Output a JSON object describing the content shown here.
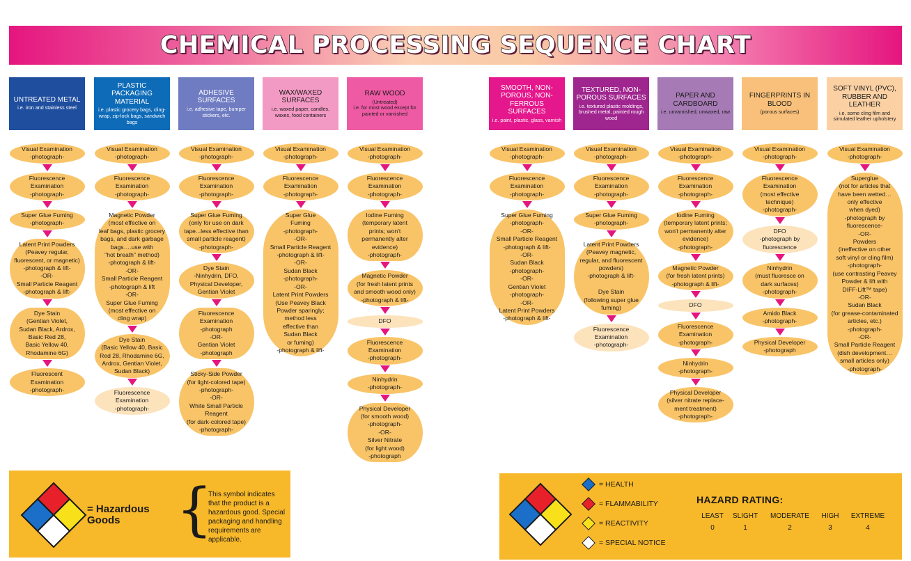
{
  "title": "CHEMICAL PROCESSING SEQUENCE CHART",
  "colors": {
    "arrow": "#e5157f",
    "step": "#f9c468",
    "step_pale": "#fce3bc",
    "footer": "#f7b82a"
  },
  "columns": [
    {
      "title": "UNTREATED METAL",
      "subtitle": "i.e. iron and stainless steel",
      "color": "#1f4e9e",
      "text": "dark",
      "steps": [
        {
          "text": "Visual Examination\n-photograph-"
        },
        {
          "text": "Fluorescence\nExamination\n-photograph-"
        },
        {
          "text": "Super Glue Fuming\n-photograph-"
        },
        {
          "text": "Latent Print Powders\n(Peavey regular,\nfluorescent, or magnetic)\n-photograph & lift-\n-OR-\nSmall Particle Reagent\n-photograph & lift-"
        },
        {
          "text": "Dye Stain\n(Gentian Violet,\nSudan Black, Ardrox,\nBasic Red 28,\nBasic Yellow 40,\nRhodamine 6G)"
        },
        {
          "text": "Fluorescent\nExamination\n-photograph-"
        }
      ]
    },
    {
      "title": "PLASTIC PACKAGING MATERIAL",
      "subtitle": "i.e. plastic grocery bags, cling-wrap, zip-lock bags, sandwich bags",
      "color": "#0e6bb8",
      "text": "dark",
      "steps": [
        {
          "text": "Visual Examination\n-photograph-"
        },
        {
          "text": "Fluorescence\nExamination\n-photograph-"
        },
        {
          "text": "Magnetic Powder\n(most effective on\nleaf bags, plastic grocery\nbags, and dark garbage\nbags….use with\n\"hot breath\" method)\n-photograph & lift-\n-OR-\nSmall Particle Reagent\n-photograph & lift\n-OR-\nSuper Glue Fuming\n(most effective on\ncling wrap)"
        },
        {
          "text": "Dye Stain\n(Basic Yellow 40, Basic\nRed 28, Rhodamine 6G,\nArdrox, Gentian Violet,\nSudan Black)"
        },
        {
          "text": "Fluorescence\nExamination\n-photograph-",
          "pale": true
        }
      ]
    },
    {
      "title": "ADHESIVE SURFACES",
      "subtitle": "i.e. adhesive tape, bumper stickers, etc.",
      "color": "#6f7cc2",
      "text": "dark",
      "steps": [
        {
          "text": "Visual Examination\n-photograph-"
        },
        {
          "text": "Fluorescence\nExamination\n-photograph-"
        },
        {
          "text": "Super Glue Fuming\n(only for use on dark\ntape...less effective than\nsmall particle reagent)\n-photograph-"
        },
        {
          "text": "Dye Stain\n-Ninhydrin, DFO,\nPhysical Developer,\nGentian Violet"
        },
        {
          "text": "Fluorescence\nExamination\n-photograph\n-OR-\nGentian Violet\n-photograph"
        },
        {
          "text": "Sticky-Side Powder\n(for light-colored tape)\n-photograph-\n-OR-\nWhite Small Particle\nReagent\n(for dark-colored tape)\n-photograph-"
        }
      ]
    },
    {
      "title": "WAX/WAXED SURFACES",
      "subtitle": "i.e. waxed paper, candles, waxes, food containers",
      "color": "#f39ac4",
      "text": "light",
      "steps": [
        {
          "text": "Visual Examination\n-photograph-"
        },
        {
          "text": "Fluorescence\nExamination\n-photograph-"
        },
        {
          "text": "Super Glue\nFuming\n-photograph-\n-OR-\nSmall Particle Reagent\n-photograph & lift-\n-OR-\nSudan Black\n-photograph-\n-OR-\nLatent Print Powders\n(Use Peavey Black\nPowder sparingly;\nmethod less\neffective than\nSudan Black\nor fuming)\n-photograph & lift-"
        }
      ]
    },
    {
      "title": "RAW WOOD",
      "subtitle": "(Untreated)\ni.e. for most wood except for painted or varnished",
      "color": "#ef5aa5",
      "text": "light",
      "steps": [
        {
          "text": "Visual Examination\n-photograph-"
        },
        {
          "text": "Fluorescence\nExamination\n-photograph-"
        },
        {
          "text": "Iodine Fuming\n(temporary latent\nprints; won't\npermanently alter\nevidence)\n-photograph-"
        },
        {
          "text": "Magnetic Powder\n(for fresh latent prints\nand smooth wood only)\n-photograph & lift-"
        },
        {
          "text": "DFO",
          "pale": true
        },
        {
          "text": "Fluorescence\nExamination\n-photograph-"
        },
        {
          "text": "Ninhydrin\n-photograph-"
        },
        {
          "text": "Physical Developer\n(for smooth wood)\n-photograph-\n-OR-\nSilver Nitrate\n(for light wood)\n-photograph"
        }
      ]
    },
    {
      "title": "SMOOTH, NON-POROUS, NON-FERROUS SURFACES",
      "subtitle": "i.e. paint, plastic, glass, varnish",
      "color": "#e5178c",
      "text": "dark",
      "steps": [
        {
          "text": "Visual Examination\n-photograph-"
        },
        {
          "text": "Fluorescence\nExamination\n-photograph-"
        },
        {
          "text": "Super Glue Fuming\n-photograph-\n-OR-\nSmall Particle Reagent\n-photograph & lift-\n-OR-\nSudan Black\n-photograph-\n-OR-\nGentian Violet\n-photograph-\n-OR-\nLatent Print Powders\n-photograph & lift-"
        }
      ]
    },
    {
      "title": "TEXTURED, NON-POROUS SURFACES",
      "subtitle": "i.e. textured plastic moldings, brushed metal, painted rough wood",
      "color": "#a0268f",
      "text": "dark",
      "steps": [
        {
          "text": "Visual Examination\n-photograph-"
        },
        {
          "text": "Fluorescence\nExamination\n-photograph-"
        },
        {
          "text": "Super Glue Fuming\n-photograph-"
        },
        {
          "text": "Latent Print Powders\n(Peavey magnetic,\nregular, and fluorescent\npowders)\n-photograph & lift-\n\nDye Stain\n(following super glue\nfuming)"
        },
        {
          "text": "Fluorescence\nExamination\n-photograph-",
          "pale": true
        }
      ]
    },
    {
      "title": "PAPER AND CARDBOARD",
      "subtitle": "i.e. unvarnished, unwaxed, raw",
      "color": "#a67ab5",
      "text": "light",
      "steps": [
        {
          "text": "Visual Examination\n-photograph-"
        },
        {
          "text": "Fluorescence\nExamination\n-photograph-"
        },
        {
          "text": "Iodine Fuming\n(temporary latent prints;\nwon't permanently alter\nevidence)\n-photograph-"
        },
        {
          "text": "Magnetic Powder\n(for fresh latent prints)\n-photograph & lift-"
        },
        {
          "text": "DFO",
          "pale": true
        },
        {
          "text": "Fluorescence\nExamination\n-photograph-"
        },
        {
          "text": "Ninhydrin\n-photograph-"
        },
        {
          "text": "Physical Developer\n(silver nitrate replace-\nment treatment)\n-photograph-"
        }
      ]
    },
    {
      "title": "FINGERPRINTS IN BLOOD",
      "subtitle": "(porous surfaces)",
      "color": "#f8c07a",
      "text": "light",
      "steps": [
        {
          "text": "Visual Examination\n-photograph-"
        },
        {
          "text": "Fluorescence\nExamination\n(most effective\ntechnique)\n-photograph-"
        },
        {
          "text": "DFO\n-photograph by\nfluorescence",
          "pale": true
        },
        {
          "text": "Ninhydrin\n(must fluoresce on\ndark surfaces)\n-photograph-"
        },
        {
          "text": "Amido Black\n-photograph-"
        },
        {
          "text": "Physical Developer\n-photograph"
        }
      ]
    },
    {
      "title": "SOFT VINYL (PVC), RUBBER AND LEATHER",
      "subtitle": "i.e. some cling film and simulated leather upholstery",
      "color": "#fbd1a4",
      "text": "light",
      "steps": [
        {
          "text": "Visual Examination\n-photograph-"
        },
        {
          "text": "Superglue\n(not for articles that\nhave been wetted…\nonly effective\nwhen dyed)\n-photograph by\nfluorescence-\n-OR-\nPowders\n(ineffective on other\nsoft vinyl or cling film)\n-photograph-\n(use contrasting Peavey\nPowder & lift with\nDIFF-Lift™ tape)\n-OR-\nSudan Black\n(for grease-contaminated\narticles, etc.)\n-photograph-\n-OR-\nSmall Particle Reagent\n(dish development…\nsmall articles only)\n-photograph-"
        }
      ]
    }
  ],
  "hazard_note": {
    "label": "= Hazardous Goods",
    "text": "This symbol indicates that the product is a hazardous good. Special packaging and handling requirements are applicable."
  },
  "legend": [
    {
      "label": "= HEALTH",
      "color": "#1b6fc8"
    },
    {
      "label": "= FLAMMABILITY",
      "color": "#e8202a"
    },
    {
      "label": "= REACTIVITY",
      "color": "#f8e11a"
    },
    {
      "label": "= SPECIAL NOTICE",
      "color": "#ffffff"
    }
  ],
  "hazard_rating": {
    "title": "HAZARD RATING:",
    "levels": [
      {
        "label": "LEAST",
        "value": "0"
      },
      {
        "label": "SLIGHT",
        "value": "1"
      },
      {
        "label": "MODERATE",
        "value": "2"
      },
      {
        "label": "HIGH",
        "value": "3"
      },
      {
        "label": "EXTREME",
        "value": "4"
      }
    ]
  }
}
